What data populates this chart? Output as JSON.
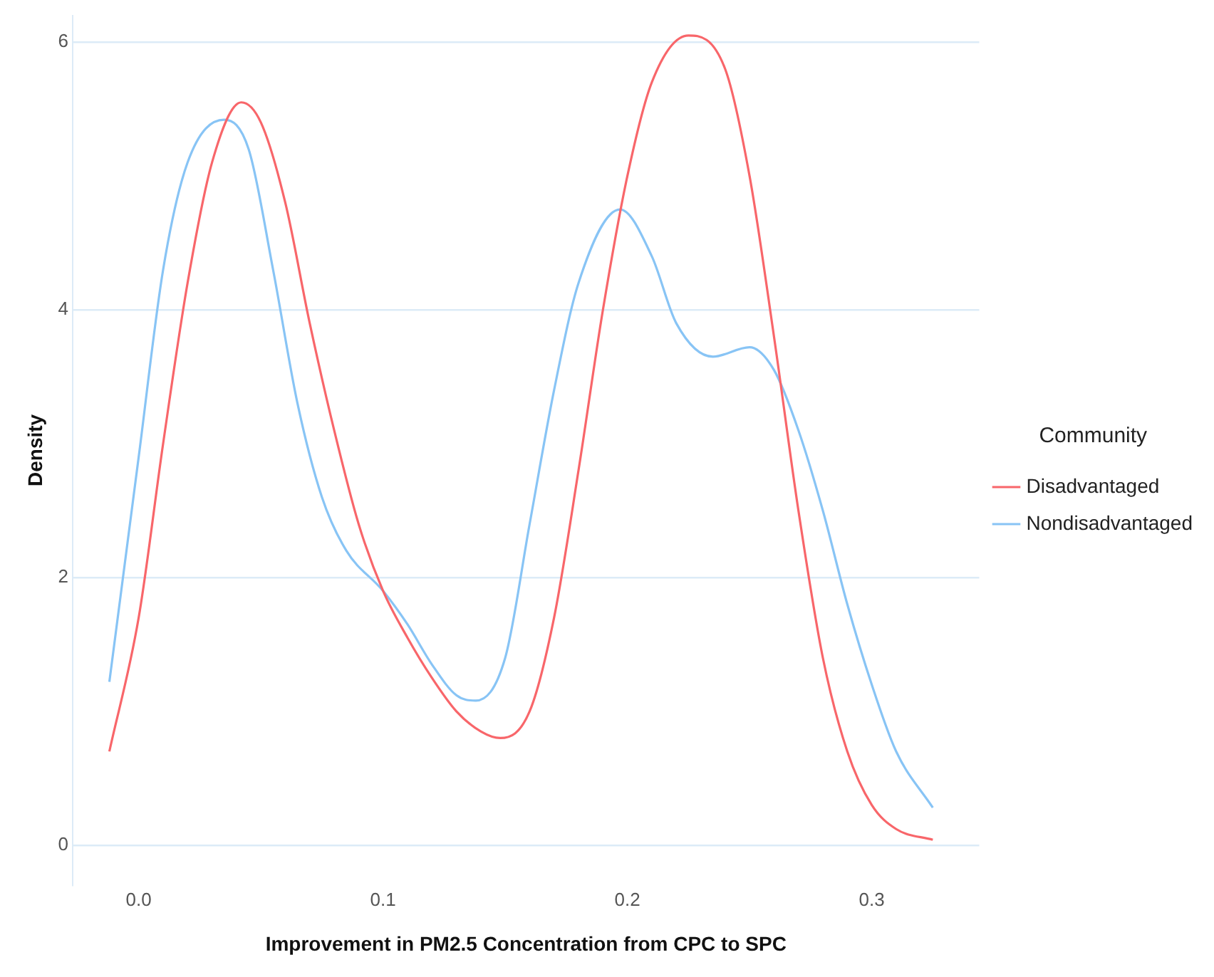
{
  "chart_data": {
    "type": "line",
    "xlabel": "Improvement in PM2.5 Concentration from CPC to SPC",
    "ylabel": "Density",
    "legend_title": "Community",
    "legend": "right",
    "grid": "y",
    "marker": "none",
    "line_style": "solid",
    "xlim": [
      -0.027,
      0.344
    ],
    "ylim": [
      -0.3,
      6.2
    ],
    "xticks": [
      {
        "value": 0,
        "label": "0.0"
      },
      0.1,
      0.2,
      0.3
    ],
    "yticks": [
      0,
      2,
      4,
      6
    ],
    "series": [
      {
        "name": "Disadvantaged",
        "color": "#f8666a",
        "x": [
          -0.012,
          0,
          0.01,
          0.02,
          0.03,
          0.042,
          0.05,
          0.06,
          0.07,
          0.08,
          0.09,
          0.1,
          0.11,
          0.12,
          0.13,
          0.14,
          0.148,
          0.16,
          0.17,
          0.18,
          0.19,
          0.2,
          0.21,
          0.225,
          0.24,
          0.25,
          0.26,
          0.27,
          0.28,
          0.29,
          0.3,
          0.31,
          0.325
        ],
        "values": [
          0.7,
          1.7,
          3.0,
          4.2,
          5.1,
          5.55,
          5.4,
          4.8,
          3.9,
          3.1,
          2.4,
          1.9,
          1.55,
          1.25,
          1.0,
          0.85,
          0.8,
          1.0,
          1.7,
          2.8,
          4.0,
          5.0,
          5.7,
          6.05,
          5.8,
          5.0,
          3.8,
          2.5,
          1.4,
          0.7,
          0.3,
          0.12,
          0.04
        ]
      },
      {
        "name": "Nondisadvantaged",
        "color": "#88c4f5",
        "x": [
          -0.012,
          0,
          0.01,
          0.02,
          0.035,
          0.045,
          0.055,
          0.065,
          0.075,
          0.085,
          0.1,
          0.11,
          0.12,
          0.13,
          0.138,
          0.15,
          0.16,
          0.17,
          0.18,
          0.197,
          0.21,
          0.22,
          0.235,
          0.25,
          0.26,
          0.27,
          0.28,
          0.29,
          0.3,
          0.31,
          0.325
        ],
        "values": [
          1.22,
          2.9,
          4.3,
          5.1,
          5.42,
          5.2,
          4.3,
          3.3,
          2.6,
          2.2,
          1.9,
          1.65,
          1.35,
          1.12,
          1.08,
          1.4,
          2.4,
          3.4,
          4.2,
          4.75,
          4.4,
          3.9,
          3.65,
          3.72,
          3.55,
          3.1,
          2.5,
          1.8,
          1.2,
          0.7,
          0.28
        ]
      }
    ]
  }
}
